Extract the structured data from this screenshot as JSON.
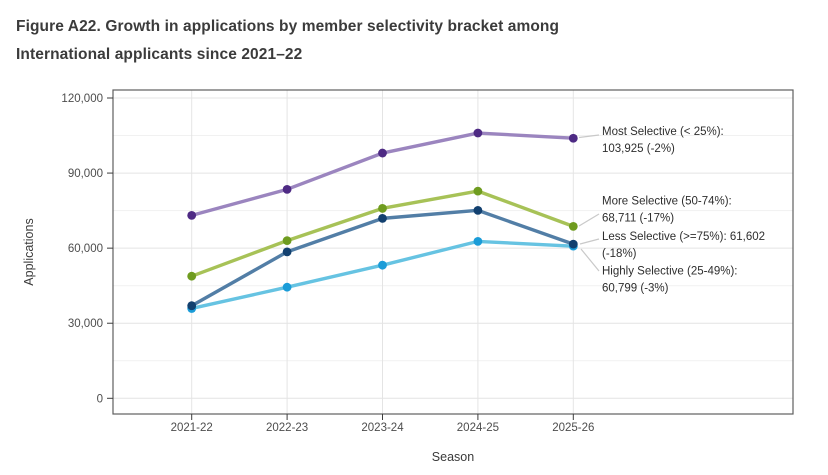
{
  "figure": {
    "title_line1": "Figure A22. Growth in applications by member selectivity bracket among",
    "title_line2": "International applicants since 2021–22"
  },
  "chart_data": {
    "type": "line",
    "title": "Figure A22. Growth in applications by member selectivity bracket among International applicants since 2021–22",
    "xlabel": "Season",
    "ylabel": "Applications",
    "categories": [
      "2021-22",
      "2022-23",
      "2023-24",
      "2024-25",
      "2025-26"
    ],
    "ylim": [
      0,
      120000
    ],
    "yticks": [
      0,
      30000,
      60000,
      90000,
      120000
    ],
    "ytick_labels": [
      "0",
      "30,000",
      "60,000",
      "90,000",
      "120,000"
    ],
    "grid": "horizontal major+minor, vertical major at each season; panel border on all sides",
    "legend_position": "direct labels at right of last data point",
    "series": [
      {
        "name": "Most Selective (< 25%)",
        "values": [
          73100,
          83500,
          98000,
          106000,
          103925
        ],
        "final_value_label": "103,925",
        "final_change_label": "-2%",
        "label_lines": [
          "Most Selective (< 25%):",
          "103,925 (-2%)"
        ],
        "line_color": "#9b85bf",
        "point_color": "#4e2a84"
      },
      {
        "name": "More Selective (50-74%)",
        "values": [
          48800,
          63000,
          75900,
          82800,
          68711
        ],
        "final_value_label": "68,711",
        "final_change_label": "-17%",
        "label_lines": [
          "More Selective (50-74%):",
          "68,711 (-17%)"
        ],
        "line_color": "#a7c257",
        "point_color": "#6f9c1f"
      },
      {
        "name": "Highly Selective (25-49%)",
        "values": [
          35900,
          44400,
          53200,
          62700,
          60799
        ],
        "final_value_label": "60,799",
        "final_change_label": "-3%",
        "label_lines": [
          "Highly Selective (25-49%):",
          "60,799 (-3%)"
        ],
        "line_color": "#66c3e2",
        "point_color": "#1a9cd8"
      },
      {
        "name": "Less Selective (>=75%)",
        "values": [
          37000,
          58500,
          71900,
          75100,
          61602
        ],
        "final_value_label": "61,602",
        "final_change_label": "-18%",
        "label_lines": [
          "Less Selective (>=75%): 61,602",
          "(-18%)"
        ],
        "line_color": "#527ea6",
        "point_color": "#12406f"
      }
    ]
  },
  "colors": {
    "panel_border": "#5f5f5f",
    "grid_major": "#e4e4e4",
    "grid_minor": "#f1f1f1",
    "tick": "#3c3c3c",
    "leader_line": "#c9c9c9",
    "title_text": "#3b3b3b",
    "tick_text": "#4d4d4d",
    "annotation_text": "#2e2e2e"
  }
}
